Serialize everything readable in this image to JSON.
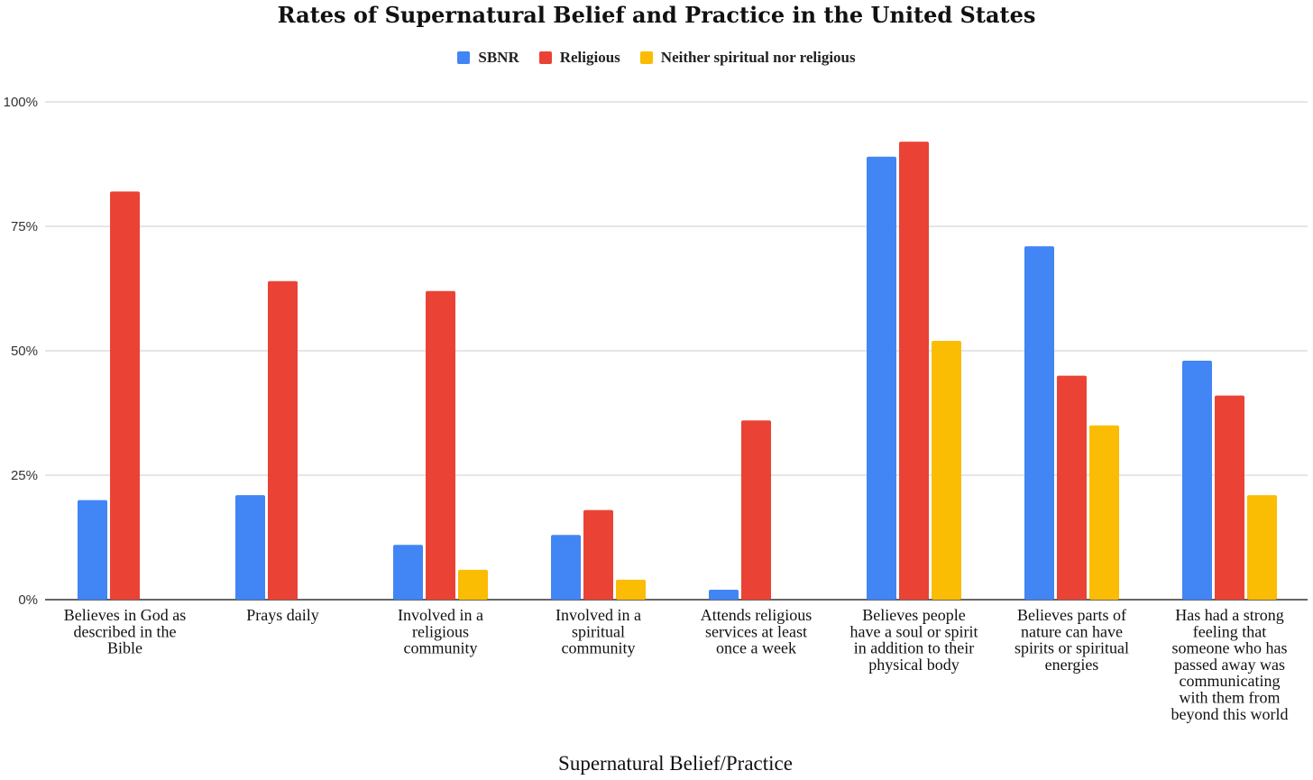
{
  "chart_data": {
    "type": "bar",
    "title": "Rates of Supernatural Belief and Practice in the United States",
    "xlabel": "Supernatural Belief/Practice",
    "ylabel": "",
    "ylim": [
      0,
      100
    ],
    "yticks": [
      {
        "value": 0,
        "label": "0%"
      },
      {
        "value": 25,
        "label": "25%"
      },
      {
        "value": 50,
        "label": "50%"
      },
      {
        "value": 75,
        "label": "75%"
      },
      {
        "value": 100,
        "label": "100%"
      }
    ],
    "legend_position": "top-center",
    "categories": [
      [
        "Believes in God as",
        "described in the",
        "Bible"
      ],
      [
        "Prays daily"
      ],
      [
        "Involved in a",
        "religious",
        "community"
      ],
      [
        "Involved in a",
        "spiritual",
        "community"
      ],
      [
        "Attends religious",
        "services at least",
        "once a week"
      ],
      [
        "Believes people",
        "have a soul or spirit",
        "in addition to their",
        "physical body"
      ],
      [
        "Believes parts of",
        "nature can have",
        "spirits or spiritual",
        "energies"
      ],
      [
        "Has had a strong",
        "feeling that",
        "someone who has",
        "passed away was",
        "communicating",
        "with them from",
        "beyond this world"
      ]
    ],
    "series": [
      {
        "name": "SBNR",
        "color": "#4285f4",
        "values": [
          20,
          21,
          11,
          13,
          2,
          89,
          71,
          48
        ]
      },
      {
        "name": "Religious",
        "color": "#ea4335",
        "values": [
          82,
          64,
          62,
          18,
          36,
          92,
          45,
          41
        ]
      },
      {
        "name": "Neither spiritual nor religious",
        "color": "#fbbc04",
        "values": [
          0,
          0,
          6,
          4,
          0,
          52,
          35,
          21
        ]
      }
    ]
  }
}
